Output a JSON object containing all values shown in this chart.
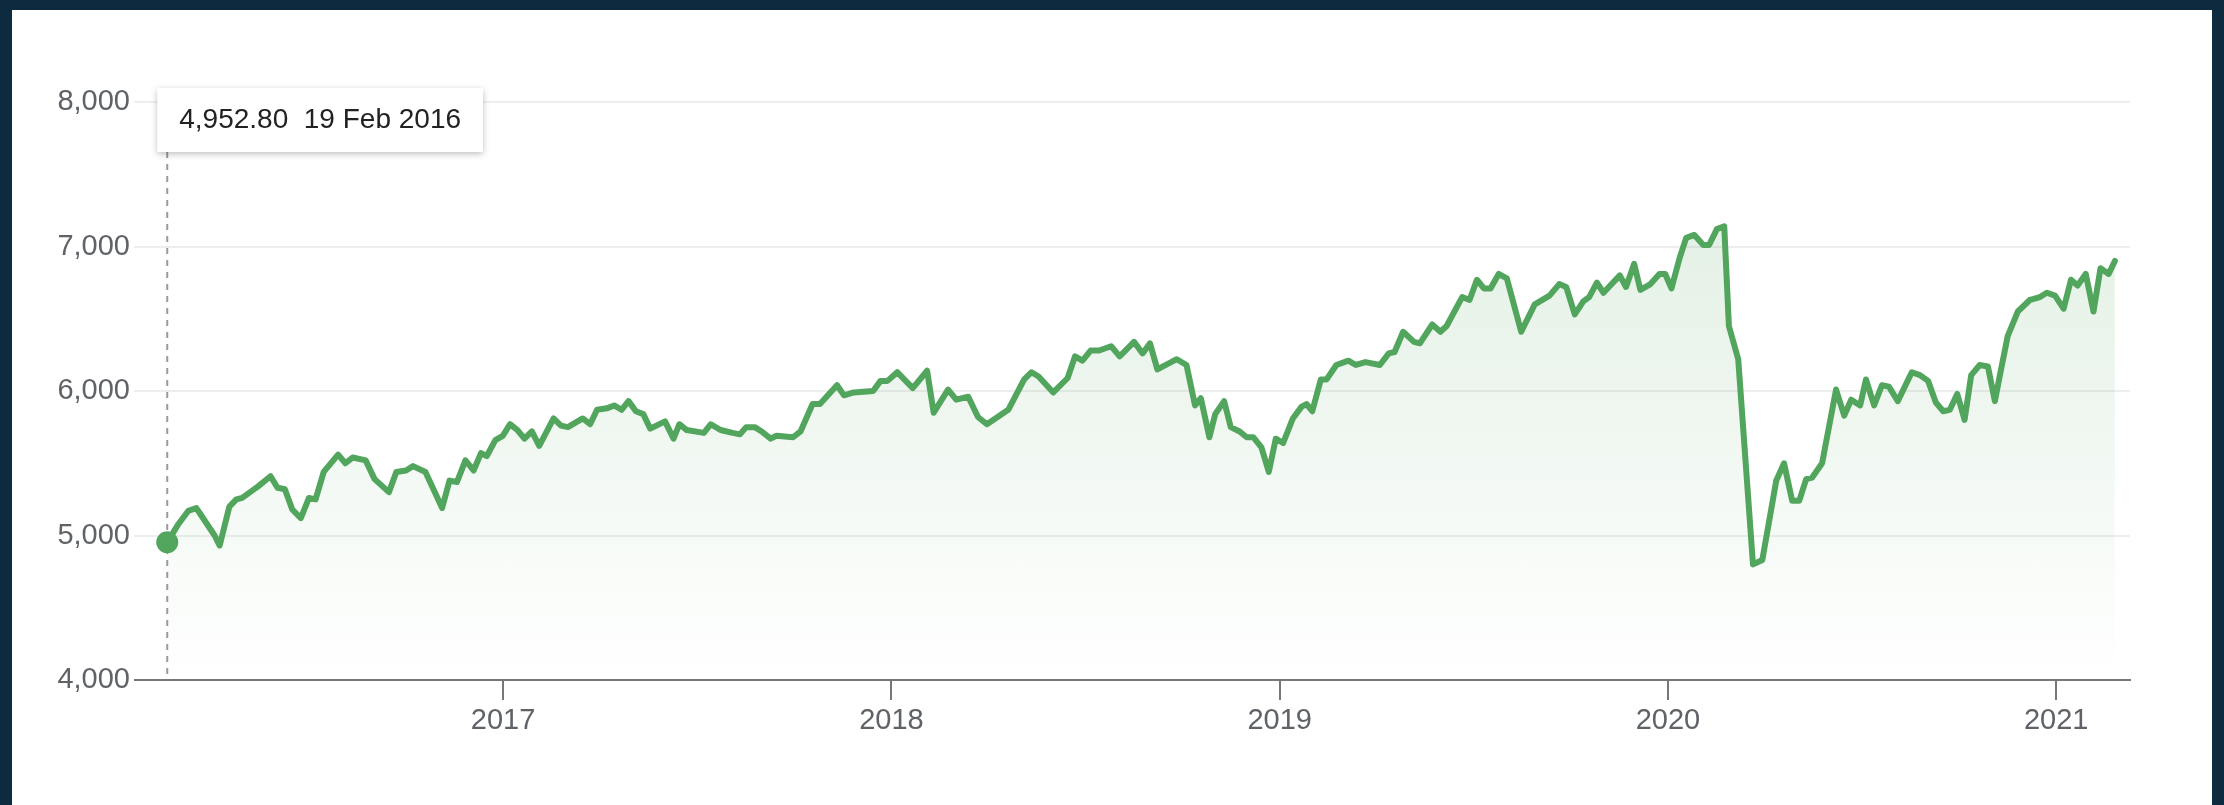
{
  "chart_data": {
    "type": "area",
    "xlim": [
      2016.07,
      2021.19
    ],
    "xticks": [
      2017,
      2018,
      2019,
      2020,
      2021
    ],
    "ylim": [
      4000,
      8000
    ],
    "yticks": [
      {
        "value": 4000,
        "label": "4,000"
      },
      {
        "value": 5000,
        "label": "5,000"
      },
      {
        "value": 6000,
        "label": "6,000"
      },
      {
        "value": 7000,
        "label": "7,000"
      },
      {
        "value": 8000,
        "label": "8,000"
      }
    ],
    "grid": "y",
    "legend": false,
    "marker": "none",
    "line_style": "solid",
    "ref_lines": [
      {
        "axis": "x",
        "value": 2016.135,
        "label": null,
        "color": "#9a9a9a",
        "line_style": "dashed"
      }
    ],
    "annotations": [
      "4,952.80  19 Feb 2016"
    ],
    "series": [
      {
        "color": "#52a55c",
        "x": [
          2016.135,
          2016.164,
          2016.189,
          2016.21,
          2016.257,
          2016.27,
          2016.295,
          2016.313,
          2016.328,
          2016.369,
          2016.401,
          2016.419,
          2016.438,
          2016.457,
          2016.479,
          2016.5,
          2016.517,
          2016.538,
          2016.575,
          2016.594,
          2016.613,
          2016.646,
          2016.669,
          2016.706,
          2016.725,
          2016.75,
          2016.768,
          2016.8,
          2016.843,
          2016.862,
          2016.881,
          2016.903,
          2016.924,
          2016.943,
          2016.958,
          2016.98,
          2016.999,
          2017.018,
          2017.037,
          2017.055,
          2017.074,
          2017.093,
          2017.13,
          2017.149,
          2017.167,
          2017.205,
          2017.224,
          2017.242,
          2017.267,
          2017.286,
          2017.305,
          2017.323,
          2017.342,
          2017.361,
          2017.379,
          2017.417,
          2017.439,
          2017.454,
          2017.473,
          2017.517,
          2017.535,
          2017.56,
          2017.591,
          2017.61,
          2017.626,
          2017.648,
          2017.666,
          2017.689,
          2017.704,
          2017.747,
          2017.766,
          2017.797,
          2017.816,
          2017.86,
          2017.878,
          2017.903,
          2017.953,
          2017.972,
          2017.99,
          2018.015,
          2018.055,
          2018.092,
          2018.109,
          2018.146,
          2018.167,
          2018.198,
          2018.223,
          2018.246,
          2018.301,
          2018.342,
          2018.361,
          2018.379,
          2018.417,
          2018.454,
          2018.473,
          2018.492,
          2018.513,
          2018.535,
          2018.566,
          2018.588,
          2018.625,
          2018.647,
          2018.666,
          2018.685,
          2018.735,
          2018.76,
          2018.782,
          2018.797,
          2018.819,
          2018.834,
          2018.857,
          2018.874,
          2018.897,
          2018.915,
          2018.932,
          2018.953,
          2018.972,
          2018.99,
          2019.009,
          2019.034,
          2019.056,
          2019.069,
          2019.084,
          2019.106,
          2019.121,
          2019.146,
          2019.177,
          2019.196,
          2019.221,
          2019.258,
          2019.281,
          2019.296,
          2019.318,
          2019.346,
          2019.361,
          2019.393,
          2019.414,
          2019.43,
          2019.47,
          2019.489,
          2019.508,
          2019.526,
          2019.543,
          2019.564,
          2019.585,
          2019.622,
          2019.657,
          2019.695,
          2019.72,
          2019.738,
          2019.76,
          2019.782,
          2019.797,
          2019.817,
          2019.834,
          2019.876,
          2019.892,
          2019.913,
          2019.929,
          2019.955,
          2019.978,
          2019.993,
          2020.009,
          2020.03,
          2020.047,
          2020.068,
          2020.091,
          2020.106,
          2020.126,
          2020.145,
          2020.157,
          2020.181,
          2020.219,
          2020.243,
          2020.279,
          2020.299,
          2020.32,
          2020.338,
          2020.356,
          2020.371,
          2020.397,
          2020.433,
          2020.454,
          2020.472,
          2020.495,
          2020.51,
          2020.531,
          2020.551,
          2020.569,
          2020.592,
          2020.628,
          2020.649,
          2020.67,
          2020.69,
          2020.709,
          2020.726,
          2020.745,
          2020.764,
          2020.781,
          2020.803,
          2020.824,
          2020.842,
          2020.855,
          2020.875,
          2020.901,
          2020.932,
          2020.958,
          2020.976,
          2020.997,
          2021.019,
          2021.038,
          2021.055,
          2021.076,
          2021.096,
          2021.114,
          2021.135,
          2021.151
        ],
        "values": [
          4952.8,
          5080,
          5170,
          5190,
          5000,
          4930,
          5200,
          5250,
          5260,
          5340,
          5410,
          5330,
          5320,
          5180,
          5120,
          5260,
          5250,
          5440,
          5560,
          5500,
          5540,
          5520,
          5390,
          5300,
          5440,
          5450,
          5480,
          5440,
          5190,
          5380,
          5370,
          5520,
          5450,
          5570,
          5550,
          5660,
          5690,
          5770,
          5730,
          5670,
          5720,
          5620,
          5810,
          5760,
          5750,
          5810,
          5770,
          5870,
          5880,
          5900,
          5870,
          5930,
          5860,
          5840,
          5740,
          5790,
          5670,
          5770,
          5730,
          5710,
          5770,
          5730,
          5710,
          5700,
          5750,
          5750,
          5720,
          5670,
          5690,
          5680,
          5720,
          5910,
          5910,
          6040,
          5970,
          5990,
          6000,
          6070,
          6070,
          6130,
          6020,
          6140,
          5850,
          6010,
          5940,
          5960,
          5820,
          5770,
          5870,
          6080,
          6130,
          6100,
          5990,
          6090,
          6240,
          6210,
          6280,
          6280,
          6310,
          6240,
          6340,
          6260,
          6330,
          6150,
          6220,
          6180,
          5900,
          5950,
          5680,
          5840,
          5930,
          5750,
          5720,
          5680,
          5680,
          5610,
          5440,
          5670,
          5640,
          5810,
          5890,
          5910,
          5860,
          6080,
          6080,
          6180,
          6210,
          6180,
          6200,
          6180,
          6260,
          6270,
          6410,
          6340,
          6330,
          6460,
          6410,
          6450,
          6650,
          6630,
          6770,
          6710,
          6710,
          6810,
          6780,
          6410,
          6600,
          6660,
          6740,
          6720,
          6530,
          6620,
          6650,
          6750,
          6680,
          6800,
          6720,
          6880,
          6700,
          6740,
          6810,
          6810,
          6710,
          6920,
          7060,
          7080,
          7010,
          7010,
          7120,
          7140,
          6450,
          6220,
          4800,
          4830,
          5380,
          5500,
          5240,
          5240,
          5390,
          5400,
          5500,
          6010,
          5830,
          5940,
          5900,
          6080,
          5900,
          6040,
          6030,
          5930,
          6130,
          6110,
          6070,
          5920,
          5860,
          5870,
          5980,
          5800,
          6110,
          6180,
          6170,
          5930,
          6110,
          6380,
          6550,
          6630,
          6650,
          6680,
          6660,
          6570,
          6770,
          6730,
          6810,
          6550,
          6850,
          6810,
          6900
        ]
      }
    ]
  }
}
